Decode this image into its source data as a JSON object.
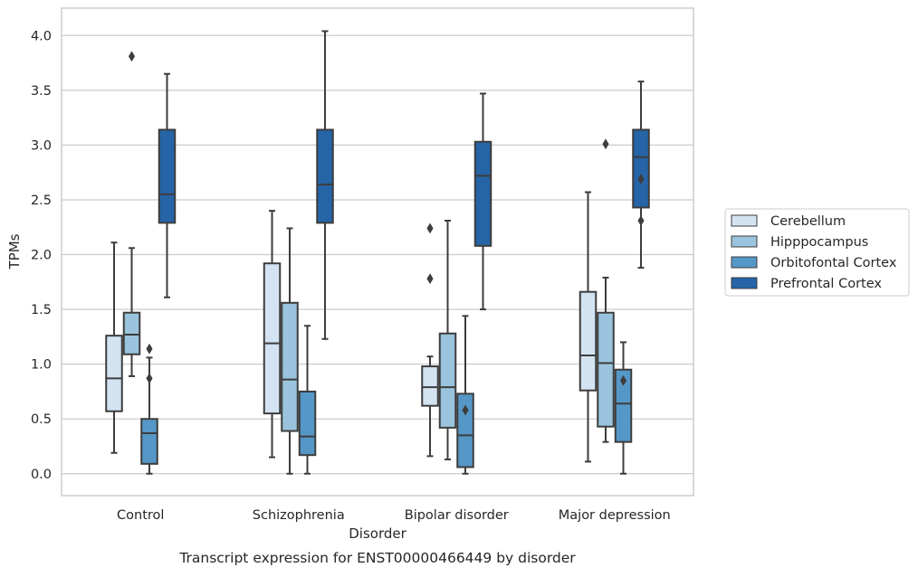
{
  "chart_data": {
    "type": "box",
    "title": "",
    "caption": "Transcript expression for ENST00000466449 by disorder",
    "xlabel": "Disorder",
    "ylabel": "TPMs",
    "ylim": [
      -0.2,
      4.25
    ],
    "yticks": [
      "0.0",
      "0.5",
      "1.0",
      "1.5",
      "2.0",
      "2.5",
      "3.0",
      "3.5",
      "4.0"
    ],
    "grid": "horizontal",
    "legend_position": "right",
    "categories": [
      "Control",
      "Schizophrenia",
      "Bipolar disorder",
      "Major depression"
    ],
    "series": [
      {
        "name": "Cerebellum",
        "color": "#d3e3f2",
        "boxes": [
          {
            "whisker_low": 0.19,
            "q1": 0.57,
            "median": 0.87,
            "q3": 1.26,
            "whisker_high": 2.11,
            "outliers": []
          },
          {
            "whisker_low": 0.15,
            "q1": 0.55,
            "median": 1.19,
            "q3": 1.92,
            "whisker_high": 2.4,
            "outliers": []
          },
          {
            "whisker_low": 0.16,
            "q1": 0.62,
            "median": 0.79,
            "q3": 0.98,
            "whisker_high": 1.07,
            "outliers": [
              1.78,
              2.24
            ]
          },
          {
            "whisker_low": 0.11,
            "q1": 0.76,
            "median": 1.08,
            "q3": 1.66,
            "whisker_high": 2.57,
            "outliers": []
          }
        ]
      },
      {
        "name": "Hipppocampus",
        "color": "#9ac4dd",
        "boxes": [
          {
            "whisker_low": 0.89,
            "q1": 1.09,
            "median": 1.27,
            "q3": 1.47,
            "whisker_high": 2.06,
            "outliers": [
              3.81
            ]
          },
          {
            "whisker_low": 0.0,
            "q1": 0.39,
            "median": 0.86,
            "q3": 1.56,
            "whisker_high": 2.24,
            "outliers": []
          },
          {
            "whisker_low": 0.13,
            "q1": 0.42,
            "median": 0.79,
            "q3": 1.28,
            "whisker_high": 2.31,
            "outliers": []
          },
          {
            "whisker_low": 0.29,
            "q1": 0.43,
            "median": 1.01,
            "q3": 1.47,
            "whisker_high": 1.79,
            "outliers": [
              3.01
            ]
          }
        ]
      },
      {
        "name": "Orbitofontal Cortex",
        "color": "#5597c6",
        "boxes": [
          {
            "whisker_low": 0.0,
            "q1": 0.09,
            "median": 0.37,
            "q3": 0.5,
            "whisker_high": 1.06,
            "outliers": [
              0.87,
              1.14
            ]
          },
          {
            "whisker_low": 0.0,
            "q1": 0.17,
            "median": 0.34,
            "q3": 0.75,
            "whisker_high": 1.35,
            "outliers": []
          },
          {
            "whisker_low": 0.0,
            "q1": 0.06,
            "median": 0.35,
            "q3": 0.73,
            "whisker_high": 1.44,
            "outliers": [
              0.58
            ]
          },
          {
            "whisker_low": 0.0,
            "q1": 0.29,
            "median": 0.64,
            "q3": 0.95,
            "whisker_high": 1.2,
            "outliers": [
              0.85
            ]
          }
        ]
      },
      {
        "name": "Prefrontal Cortex",
        "color": "#2564a6",
        "boxes": [
          {
            "whisker_low": 1.61,
            "q1": 2.29,
            "median": 2.55,
            "q3": 3.14,
            "whisker_high": 3.65,
            "outliers": []
          },
          {
            "whisker_low": 1.23,
            "q1": 2.29,
            "median": 2.64,
            "q3": 3.14,
            "whisker_high": 4.04,
            "outliers": []
          },
          {
            "whisker_low": 1.5,
            "q1": 2.08,
            "median": 2.72,
            "q3": 3.03,
            "whisker_high": 3.47,
            "outliers": []
          },
          {
            "whisker_low": 1.88,
            "q1": 2.43,
            "median": 2.89,
            "q3": 3.14,
            "whisker_high": 3.58,
            "outliers": [
              2.31,
              2.69
            ]
          }
        ]
      }
    ]
  }
}
